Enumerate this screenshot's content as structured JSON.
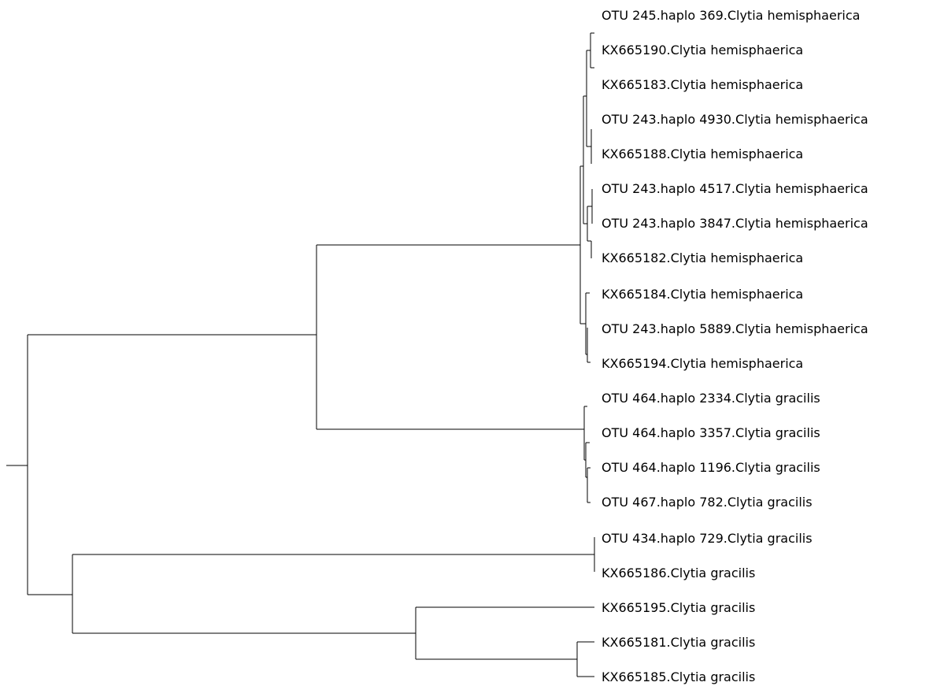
{
  "tree": {
    "line_color": "#000000",
    "leaves": [
      "OTU 245.haplo 369.Clytia hemisphaerica",
      "KX665190.Clytia hemisphaerica",
      "KX665183.Clytia hemisphaerica",
      "OTU 243.haplo 4930.Clytia hemisphaerica",
      "KX665188.Clytia hemisphaerica",
      "OTU 243.haplo 4517.Clytia hemisphaerica",
      "OTU 243.haplo 3847.Clytia hemisphaerica",
      "KX665182.Clytia hemisphaerica",
      "KX665184.Clytia hemisphaerica",
      "OTU 243.haplo 5889.Clytia hemisphaerica",
      "KX665194.Clytia hemisphaerica",
      "OTU 464.haplo 2334.Clytia gracilis",
      "OTU 464.haplo 3357.Clytia gracilis",
      "OTU 464.haplo 1196.Clytia gracilis",
      "OTU 467.haplo 782.Clytia gracilis",
      "OTU 434.haplo 729.Clytia gracilis",
      "KX665186.Clytia gracilis",
      "KX665195.Clytia gracilis",
      "KX665181.Clytia gracilis",
      "KX665185.Clytia gracilis"
    ]
  }
}
